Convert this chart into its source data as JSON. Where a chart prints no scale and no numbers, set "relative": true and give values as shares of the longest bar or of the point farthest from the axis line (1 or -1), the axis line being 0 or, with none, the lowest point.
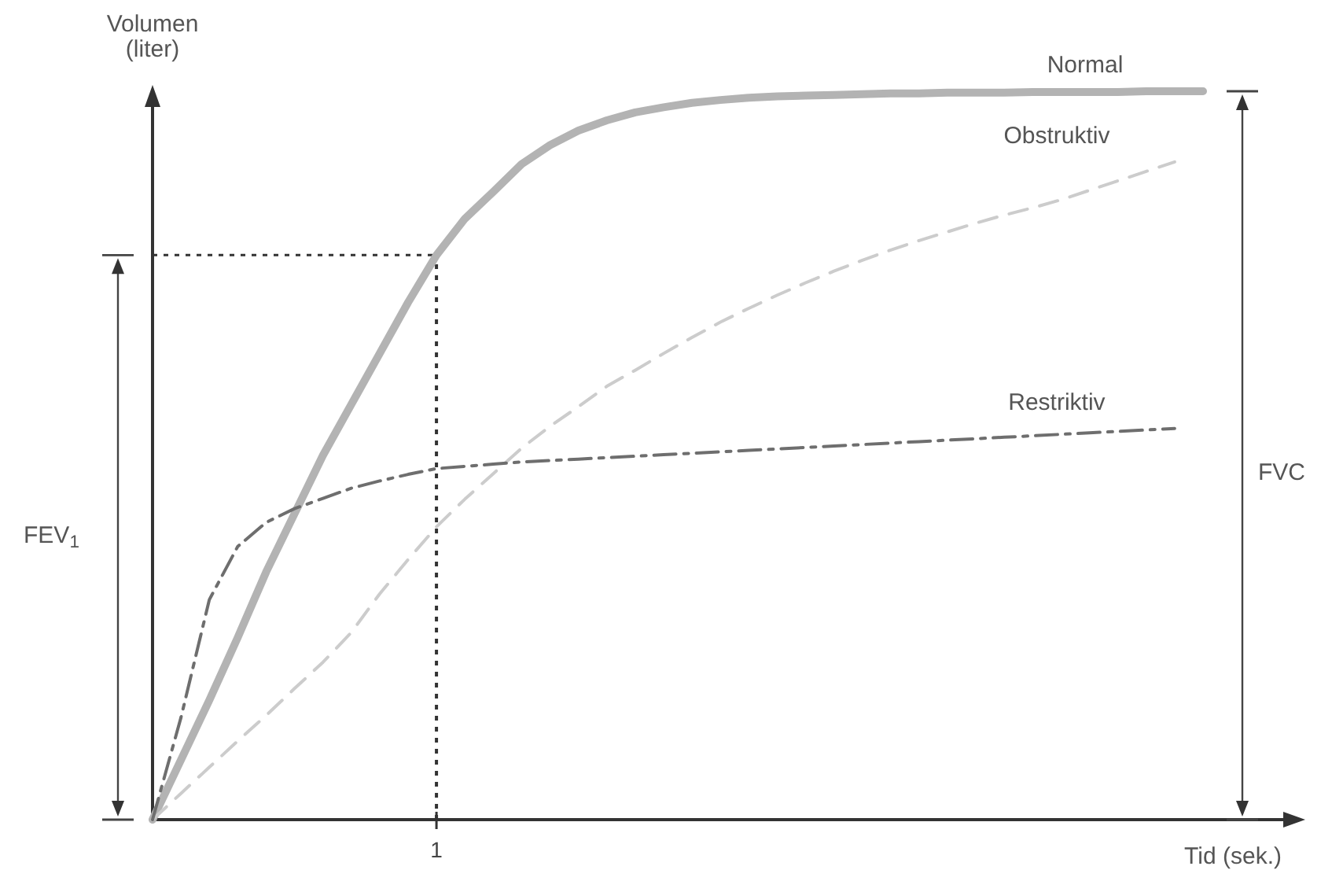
{
  "chart_data": {
    "type": "line",
    "relative": true,
    "xlabel": "Tid (sek.)",
    "ylabel": "Volumen (liter)",
    "categories": [
      null,
      null,
      null,
      null,
      null,
      null,
      null,
      null,
      null,
      null,
      null,
      null,
      null,
      null,
      null,
      null,
      null,
      null,
      null,
      null,
      null,
      null,
      null,
      null,
      null,
      null,
      null,
      null,
      null,
      null,
      null,
      null,
      null,
      null,
      null,
      null,
      null,
      null
    ],
    "series": [
      {
        "name": "Normal",
        "color": "#b3b3b3",
        "line_style": "solid",
        "values": [
          0,
          0.082,
          0.164,
          0.25,
          0.34,
          0.42,
          0.5,
          0.57,
          0.64,
          0.71,
          0.775,
          0.825,
          0.862,
          0.9,
          0.926,
          0.946,
          0.96,
          0.971,
          0.978,
          0.984,
          0.988,
          0.991,
          0.993,
          0.994,
          0.995,
          0.996,
          0.997,
          0.997,
          0.998,
          0.998,
          0.998,
          0.999,
          0.999,
          0.999,
          0.999,
          1.0,
          1.0,
          1.0
        ]
      },
      {
        "name": "Obstruktiv",
        "color": "#cccccc",
        "line_style": "dashed",
        "values": [
          0,
          0.036,
          0.072,
          0.108,
          0.143,
          0.18,
          0.216,
          0.257,
          0.31,
          0.357,
          0.402,
          0.44,
          0.475,
          0.51,
          0.54,
          0.567,
          0.595,
          0.617,
          0.64,
          0.662,
          0.683,
          0.702,
          0.72,
          0.737,
          0.753,
          0.768,
          0.782,
          0.795,
          0.807,
          0.819,
          0.83,
          0.84,
          0.851,
          0.864,
          0.877,
          0.89,
          0.903,
          null
        ]
      },
      {
        "name": "Restriktiv",
        "color": "#6e6e6e",
        "line_style": "dashdot",
        "values": [
          0,
          0.14,
          0.302,
          0.375,
          0.408,
          0.427,
          0.441,
          0.455,
          0.465,
          0.474,
          0.482,
          0.485,
          0.488,
          0.491,
          0.493,
          0.495,
          0.497,
          0.499,
          0.501,
          0.503,
          0.505,
          0.507,
          0.509,
          0.511,
          0.513,
          0.515,
          0.517,
          0.519,
          0.521,
          0.523,
          0.525,
          0.527,
          0.529,
          0.531,
          0.533,
          0.535,
          0.537,
          null
        ]
      }
    ],
    "ref_lines": [
      {
        "axis": "y",
        "value": 0.775,
        "line_style": "dotted"
      }
    ],
    "annotations": [
      "FEV$_{1}$",
      "FVC",
      "1"
    ]
  }
}
